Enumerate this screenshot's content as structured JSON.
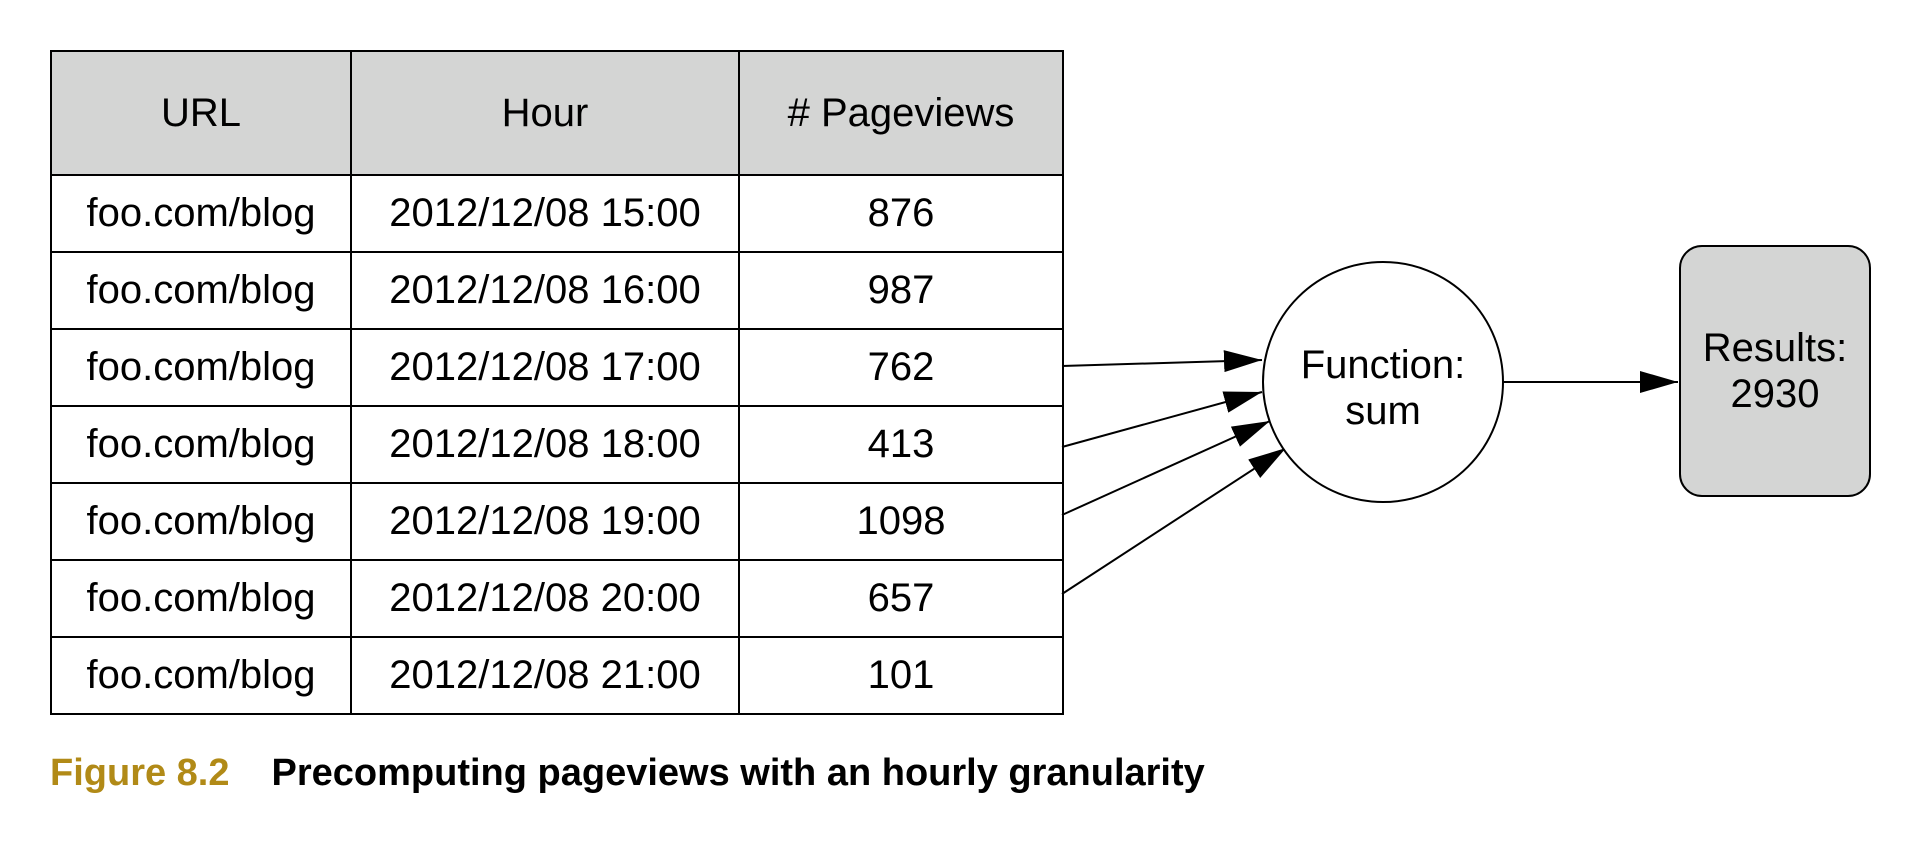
{
  "table": {
    "headers": [
      "URL",
      "Hour",
      "# Pageviews"
    ],
    "rows": [
      [
        "foo.com/blog",
        "2012/12/08 15:00",
        "876"
      ],
      [
        "foo.com/blog",
        "2012/12/08 16:00",
        "987"
      ],
      [
        "foo.com/blog",
        "2012/12/08 17:00",
        "762"
      ],
      [
        "foo.com/blog",
        "2012/12/08 18:00",
        "413"
      ],
      [
        "foo.com/blog",
        "2012/12/08 19:00",
        "1098"
      ],
      [
        "foo.com/blog",
        "2012/12/08 20:00",
        "657"
      ],
      [
        "foo.com/blog",
        "2012/12/08 21:00",
        "101"
      ]
    ]
  },
  "function_node": {
    "line1": "Function:",
    "line2": "sum"
  },
  "result_node": {
    "line1": "Results:",
    "line2": "2930"
  },
  "caption": {
    "label": "Figure 8.2",
    "text": "Precomputing pageviews with an hourly granularity"
  },
  "colors": {
    "header_fill": "#d4d5d4",
    "result_fill": "#d4d5d4",
    "caption_label": "#b18a17"
  }
}
